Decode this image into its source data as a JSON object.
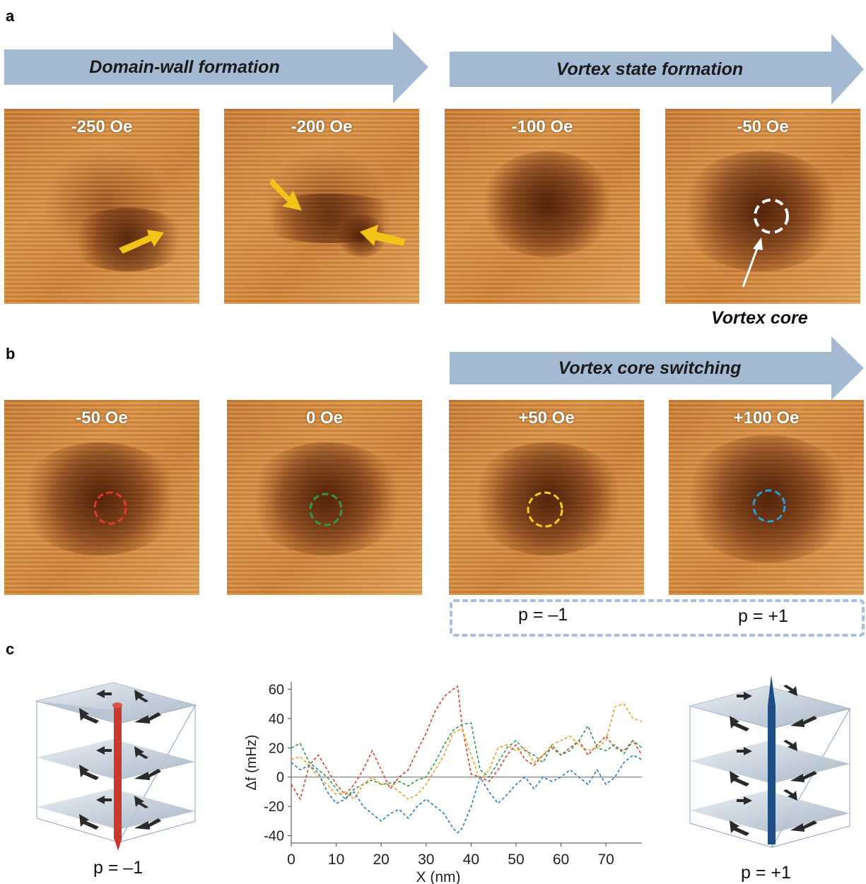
{
  "panel_labels": {
    "a": "a",
    "b": "b",
    "c": "c"
  },
  "banners": {
    "domain_wall": "Domain-wall formation",
    "vortex_state": "Vortex state formation",
    "vortex_core_switching": "Vortex core switching",
    "color": "#a4b9d2"
  },
  "row_a": {
    "images": [
      {
        "label": "-250 Oe"
      },
      {
        "label": "-200 Oe"
      },
      {
        "label": "-100 Oe"
      },
      {
        "label": "-50 Oe"
      }
    ],
    "vortex_core_label": "Vortex core"
  },
  "row_b": {
    "images": [
      {
        "label": "-50 Oe",
        "circle_color": "#e03a2a"
      },
      {
        "label": "0 Oe",
        "circle_color": "#2e9a4a"
      },
      {
        "label": "+50 Oe",
        "circle_color": "#f2d21a"
      },
      {
        "label": "+100 Oe",
        "circle_color": "#2aa0d8"
      }
    ],
    "polarity_left": "p = –1",
    "polarity_right": "p = +1"
  },
  "panel_c": {
    "left_caption": "p = –1",
    "right_caption": "p = +1",
    "core_color_left": "#c8392b",
    "core_color_right": "#1f4e86"
  },
  "chart_data": {
    "type": "line",
    "xlabel": "X (nm)",
    "ylabel": "Δf (mHz)",
    "xlim": [
      0,
      78
    ],
    "ylim": [
      -45,
      65
    ],
    "xticks": [
      "0",
      "10",
      "20",
      "30",
      "40",
      "50",
      "60",
      "70"
    ],
    "yticks": [
      "60",
      "40",
      "20",
      "0",
      "-20",
      "-40"
    ],
    "zero_line": true,
    "series": [
      {
        "color": "#e03a2a",
        "x": [
          0,
          2,
          4,
          6,
          8,
          10,
          12,
          14,
          16,
          18,
          20,
          22,
          24,
          26,
          28,
          30,
          32,
          34,
          36,
          37,
          38,
          40,
          42,
          44,
          46,
          48,
          50,
          52,
          54,
          56,
          58,
          60,
          62,
          64,
          66,
          68,
          70,
          72,
          74,
          76,
          78
        ],
        "y": [
          -5,
          -15,
          8,
          15,
          5,
          -5,
          -12,
          -5,
          5,
          18,
          5,
          -8,
          0,
          5,
          18,
          30,
          45,
          55,
          60,
          62,
          35,
          2,
          0,
          -3,
          5,
          15,
          22,
          12,
          8,
          15,
          20,
          15,
          20,
          25,
          15,
          22,
          28,
          20,
          18,
          25,
          15
        ]
      },
      {
        "color": "#2e9a4a",
        "x": [
          0,
          2,
          4,
          6,
          8,
          10,
          12,
          14,
          16,
          18,
          20,
          22,
          24,
          26,
          28,
          30,
          32,
          34,
          36,
          38,
          40,
          42,
          44,
          46,
          48,
          50,
          52,
          54,
          56,
          58,
          60,
          62,
          64,
          66,
          68,
          70,
          72,
          74,
          76,
          78
        ],
        "y": [
          20,
          23,
          10,
          5,
          0,
          -8,
          -15,
          -8,
          -5,
          -2,
          -5,
          -4,
          -3,
          -6,
          -2,
          0,
          10,
          22,
          32,
          36,
          37,
          5,
          0,
          10,
          20,
          25,
          18,
          15,
          10,
          22,
          15,
          18,
          25,
          35,
          20,
          18,
          22,
          16,
          25,
          20
        ]
      },
      {
        "color": "#f0a020",
        "x": [
          0,
          2,
          4,
          6,
          8,
          10,
          12,
          14,
          16,
          18,
          20,
          22,
          24,
          26,
          28,
          30,
          32,
          34,
          36,
          38,
          40,
          42,
          44,
          46,
          48,
          50,
          52,
          54,
          56,
          58,
          60,
          62,
          64,
          66,
          68,
          70,
          72,
          74,
          76,
          78
        ],
        "y": [
          12,
          14,
          8,
          0,
          -5,
          -12,
          -10,
          -15,
          -5,
          0,
          -5,
          -5,
          -10,
          -15,
          -12,
          -5,
          5,
          15,
          30,
          33,
          15,
          -2,
          5,
          20,
          22,
          18,
          20,
          10,
          15,
          22,
          25,
          28,
          22,
          18,
          20,
          25,
          48,
          50,
          40,
          38
        ]
      },
      {
        "color": "#2a7ac8",
        "x": [
          0,
          2,
          4,
          6,
          8,
          10,
          12,
          14,
          16,
          18,
          20,
          22,
          24,
          26,
          28,
          30,
          32,
          34,
          36,
          37,
          38,
          40,
          42,
          44,
          46,
          48,
          50,
          52,
          54,
          56,
          58,
          60,
          62,
          64,
          66,
          68,
          70,
          72,
          74,
          76,
          78
        ],
        "y": [
          10,
          5,
          8,
          3,
          -10,
          -18,
          -15,
          -10,
          -20,
          -25,
          -30,
          -25,
          -22,
          -28,
          -20,
          -15,
          -20,
          -25,
          -35,
          -38,
          -35,
          -20,
          0,
          -10,
          -18,
          -12,
          -5,
          0,
          -8,
          0,
          -3,
          0,
          5,
          0,
          -5,
          5,
          -5,
          0,
          10,
          15,
          12
        ]
      }
    ]
  }
}
